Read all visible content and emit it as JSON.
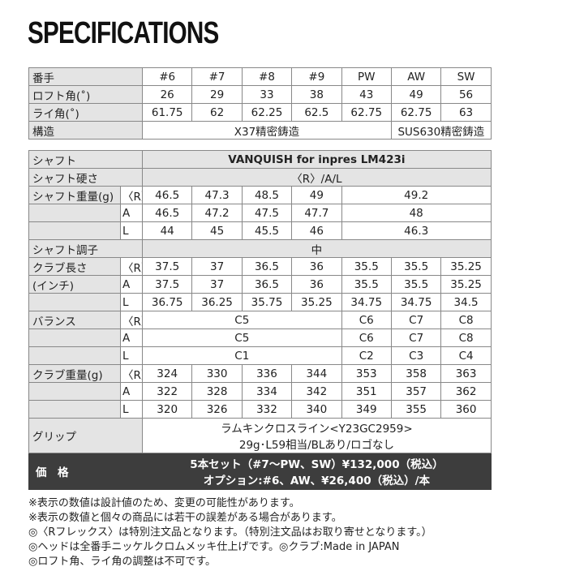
{
  "title": "SPECIFICATIONS",
  "table1": {
    "rows": [
      [
        "番手",
        "#6",
        "#7",
        "#8",
        "#9",
        "PW",
        "AW",
        "SW"
      ],
      [
        "ロフト角(˚)",
        "26",
        "29",
        "33",
        "38",
        "43",
        "49",
        "56"
      ],
      [
        "ライ角(˚)",
        "61.75",
        "62",
        "62.25",
        "62.5",
        "62.75",
        "62.75",
        "63"
      ],
      [
        "構造",
        "X37精密鋳造",
        "SUS630精密鋳造"
      ]
    ]
  },
  "table2": {
    "groups": [
      {
        "label": [
          "シャフト"
        ],
        "rows": [
          [
            "VANQUISH for inpres LM423i"
          ]
        ]
      },
      {
        "label": [
          "シャフト硬さ"
        ],
        "rows": [
          [
            "〈R〉/A/L"
          ]
        ]
      },
      {
        "label": [
          "シャフト重量(g)"
        ],
        "rows": [
          [
            "〈R〉",
            "46.5",
            "47.3",
            "48.5",
            "49",
            "49.2"
          ],
          [
            "A",
            "46.5",
            "47.2",
            "47.5",
            "47.7",
            "48"
          ],
          [
            "L",
            "44",
            "45",
            "45.5",
            "46",
            "46.3"
          ]
        ]
      },
      {
        "label": [
          "シャフト調子"
        ],
        "rows": [
          [
            "中"
          ]
        ]
      },
      {
        "label": [
          "クラブ長さ",
          "(インチ)"
        ],
        "rows": [
          [
            "〈R〉",
            "37.5",
            "37",
            "36.5",
            "36",
            "35.5",
            "35.5",
            "35.25"
          ],
          [
            "A",
            "37.5",
            "37",
            "36.5",
            "36",
            "35.5",
            "35.5",
            "35.25"
          ],
          [
            "L",
            "36.75",
            "36.25",
            "35.75",
            "35.25",
            "34.75",
            "34.75",
            "34.5"
          ]
        ]
      },
      {
        "label": [
          "バランス"
        ],
        "rows": [
          [
            "〈R〉",
            "C5",
            "C6",
            "C7",
            "C8"
          ],
          [
            "A",
            "C5",
            "C6",
            "C7",
            "C8"
          ],
          [
            "L",
            "C1",
            "C2",
            "C3",
            "C4"
          ]
        ]
      },
      {
        "label": [
          "クラブ重量(g)"
        ],
        "rows": [
          [
            "〈R〉",
            "324",
            "330",
            "336",
            "344",
            "353",
            "358",
            "363"
          ],
          [
            "A",
            "322",
            "328",
            "334",
            "342",
            "351",
            "357",
            "362"
          ],
          [
            "L",
            "320",
            "326",
            "332",
            "340",
            "349",
            "355",
            "360"
          ]
        ]
      },
      {
        "label": [
          "グリップ"
        ],
        "rows": [
          [
            "ラムキンクロスライン<Y23GC2959>",
            "29g･L59相当/BLあり/ロゴなし"
          ]
        ]
      }
    ]
  },
  "price": {
    "label": "価　格",
    "lines": [
      "5本セット（#7〜PW、SW）¥132,000（税込）",
      "オプション:#6、AW、¥26,400（税込）/本"
    ]
  },
  "notes": [
    "※表示の数値は設計値のため、変更の可能性があります。",
    "※表示の数値と個々の商品には若干の誤差がある場合があります。",
    "◎〈Rフレックス〉は特別注文品となります。（特別注文品はお取り寄せとなります。）",
    "◎ヘッドは全番手ニッケルクロムメッキ仕上げです。◎クラブ:Made in JAPAN",
    "◎ロフト角、ライ角の調整は不可です。"
  ]
}
